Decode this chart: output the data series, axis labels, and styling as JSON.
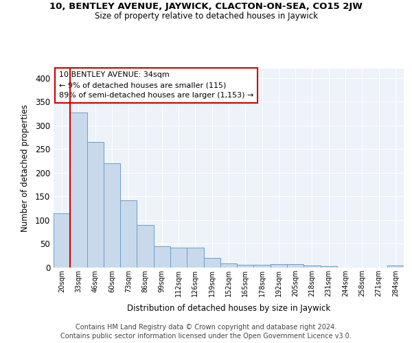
{
  "title1": "10, BENTLEY AVENUE, JAYWICK, CLACTON-ON-SEA, CO15 2JW",
  "title2": "Size of property relative to detached houses in Jaywick",
  "xlabel": "Distribution of detached houses by size in Jaywick",
  "ylabel": "Number of detached properties",
  "footer_line1": "Contains HM Land Registry data © Crown copyright and database right 2024.",
  "footer_line2": "Contains public sector information licensed under the Open Government Licence v3.0.",
  "annotation_line1": "10 BENTLEY AVENUE: 34sqm",
  "annotation_line2": "← 9% of detached houses are smaller (115)",
  "annotation_line3": "89% of semi-detached houses are larger (1,153) →",
  "bar_color": "#c9d9ec",
  "bar_edge_color": "#6a9ec5",
  "vline_color": "#cc0000",
  "annotation_box_edge": "#cc0000",
  "background_color": "#eef2f9",
  "grid_color": "#ffffff",
  "categories": [
    "20sqm",
    "33sqm",
    "46sqm",
    "60sqm",
    "73sqm",
    "86sqm",
    "99sqm",
    "112sqm",
    "126sqm",
    "139sqm",
    "152sqm",
    "165sqm",
    "178sqm",
    "192sqm",
    "205sqm",
    "218sqm",
    "231sqm",
    "244sqm",
    "258sqm",
    "271sqm",
    "284sqm"
  ],
  "values": [
    115,
    328,
    265,
    220,
    142,
    90,
    45,
    42,
    42,
    20,
    9,
    6,
    6,
    7,
    7,
    4,
    3,
    0,
    0,
    0,
    5
  ],
  "ylim": [
    0,
    420
  ],
  "yticks": [
    0,
    50,
    100,
    150,
    200,
    250,
    300,
    350,
    400
  ],
  "vline_x_index": 1
}
